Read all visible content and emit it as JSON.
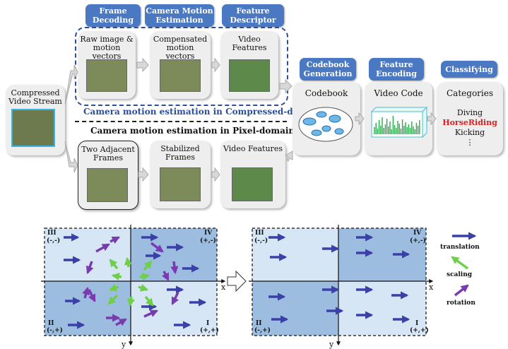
{
  "stages": {
    "frame_decoding": "Frame Decoding",
    "camera_motion_estimation": "Camera Motion Estimation",
    "feature_descriptor": "Feature Descriptor",
    "codebook_generation": "Codebook Generation",
    "feature_encoding": "Feature Encoding",
    "classifying": "Classifying"
  },
  "boxes": {
    "compressed_stream": "Compressed Video Stream",
    "raw_image": "Raw image & motion vectors",
    "compensated": "Compensated motion vectors",
    "video_features_top": "Video Features",
    "two_adjacent": "Two Adjacent Frames",
    "stabilized": "Stabilized Frames",
    "video_features_bottom": "Video Features",
    "codebook": "Codebook",
    "video_code": "Video Code",
    "categories": "Categories"
  },
  "category_items": [
    "Diving",
    "HorseRiding",
    "Kicking",
    "⋮"
  ],
  "captions": {
    "compressed_domain": "Camera motion estimation in Compressed-domain",
    "pixel_domain": "Camera motion estimation in Pixel-domain"
  },
  "quadrants": {
    "q1": "I",
    "q1_sign": "(+,+)",
    "q2": "II",
    "q2_sign": "(-,+)",
    "q3": "III",
    "q3_sign": "(-,-)",
    "q4": "IV",
    "q4_sign": "(+,-)",
    "x": "x",
    "y": "y"
  },
  "legend": {
    "translation": "translation",
    "scaling": "scaling",
    "rotation": "rotation"
  },
  "colors": {
    "stage_tag": "#4a78c2",
    "translation": "#3b3fa8",
    "scaling": "#6fcf4a",
    "rotation": "#7a3bb0",
    "quad_light": "#d6e6f4",
    "quad_dark": "#9dbde0",
    "highlight": "#e02020"
  }
}
